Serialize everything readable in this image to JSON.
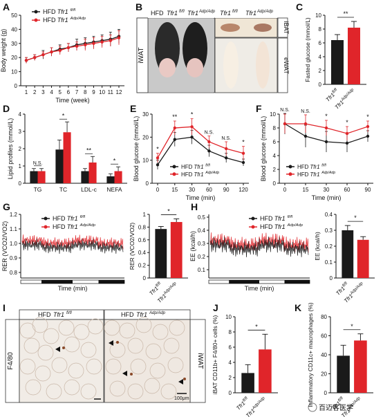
{
  "colors": {
    "hfd_ctrl": "#1a1a1a",
    "hfd_ko": "#e0252a"
  },
  "labels": {
    "ctrl_prefix": "HFD",
    "ctrl_geno": "Tfr1",
    "ctrl_sup": "fl/fl",
    "ko_prefix": "HFD",
    "ko_geno": "Tfr1",
    "ko_sup": "Adp/Adp",
    "photo_iwat": "iWAT",
    "photo_ibat": "iBAT",
    "photo_ewat": "eWAT",
    "photo_hfd": "HFD",
    "scale": "100μm",
    "f480": "F4/80",
    "iwat_side": "iWAT",
    "watermark": "百迈客医学"
  },
  "panels": {
    "A": "A",
    "B": "B",
    "C": "C",
    "D": "D",
    "E": "E",
    "F": "F",
    "G": "G",
    "H": "H",
    "I": "I",
    "J": "J",
    "K": "K"
  },
  "chart_data": [
    {
      "id": "A",
      "type": "line",
      "xlabel": "Time (week)",
      "ylabel": "Body weight (g)",
      "x": [
        1,
        2,
        3,
        4,
        5,
        6,
        7,
        8,
        9,
        10,
        11,
        12
      ],
      "ylim": [
        0,
        50
      ],
      "yticks": [
        0,
        10,
        20,
        30,
        40,
        50
      ],
      "series": [
        {
          "name": "HFD Tfr1 fl/fl",
          "values": [
            18,
            20,
            22,
            24,
            26,
            27,
            29,
            30,
            31,
            32,
            33,
            35
          ],
          "err": [
            2,
            2,
            3,
            3,
            3,
            3,
            4,
            4,
            4,
            4,
            5,
            5
          ]
        },
        {
          "name": "HFD Tfr1 Adp/Adp",
          "values": [
            18,
            20,
            22,
            24,
            25,
            27,
            28,
            29,
            30,
            31,
            32,
            34
          ],
          "err": [
            2,
            2,
            2,
            3,
            3,
            3,
            3,
            4,
            4,
            4,
            4,
            5
          ]
        }
      ]
    },
    {
      "id": "C",
      "type": "bar",
      "ylabel": "Fasted glucose (mmol/L)",
      "ylim": [
        0,
        10
      ],
      "yticks": [
        0,
        2,
        4,
        6,
        8,
        10
      ],
      "categories": [
        "Tfr1 fl/fl",
        "Tfr1 Adp/Adp"
      ],
      "values": [
        6.4,
        8.2
      ],
      "err": [
        0.8,
        0.9
      ],
      "sig": "**"
    },
    {
      "id": "D",
      "type": "bar",
      "ylabel": "Lipid profiles (mmol/L)",
      "ylim": [
        0,
        4
      ],
      "yticks": [
        0,
        1,
        2,
        3,
        4
      ],
      "categories": [
        "TG",
        "TC",
        "LDL-c",
        "NEFA"
      ],
      "series": [
        {
          "name": "HFD Tfr1 fl/fl",
          "values": [
            0.7,
            1.95,
            0.7,
            0.4
          ],
          "err": [
            0.15,
            0.55,
            0.15,
            0.15
          ]
        },
        {
          "name": "HFD Tfr1 Adp/Adp",
          "values": [
            0.7,
            2.95,
            1.2,
            0.7
          ],
          "err": [
            0.15,
            0.6,
            0.35,
            0.25
          ]
        }
      ],
      "sig": [
        "N.S.",
        "*",
        "**",
        "*"
      ]
    },
    {
      "id": "E",
      "type": "line",
      "xlabel": "Time (min)",
      "ylabel": "Blood glucose (mmol/L)",
      "x": [
        0,
        15,
        30,
        60,
        90,
        120
      ],
      "ylim": [
        0,
        30
      ],
      "yticks": [
        0,
        10,
        20,
        30
      ],
      "series": [
        {
          "name": "HFD Tfr1 fl/fl",
          "values": [
            8,
            19,
            20,
            14,
            11,
            9
          ],
          "err": [
            2,
            3,
            3,
            2.5,
            2,
            1.5
          ]
        },
        {
          "name": "HFD Tfr1 Adp/Adp",
          "values": [
            11,
            24,
            24.5,
            18,
            15,
            13
          ],
          "err": [
            2,
            3,
            3.5,
            2.5,
            3,
            3
          ]
        }
      ],
      "sig": [
        "*",
        "**",
        "*",
        "N.S.",
        "N.S.",
        "*"
      ]
    },
    {
      "id": "F",
      "type": "line",
      "xlabel": "Time (min)",
      "ylabel": "Blood glucose (mmol/L)",
      "x": [
        0,
        15,
        30,
        60,
        90
      ],
      "ylim": [
        0,
        10
      ],
      "yticks": [
        0,
        2,
        4,
        6,
        8,
        10
      ],
      "series": [
        {
          "name": "HFD Tfr1 fl/fl",
          "values": [
            8.6,
            6.8,
            6,
            5.8,
            6.8
          ],
          "err": [
            1.5,
            1.6,
            1.5,
            1.3,
            0.8
          ]
        },
        {
          "name": "HFD Tfr1 Adp/Adp",
          "values": [
            8.6,
            8.6,
            8,
            7.2,
            8.2
          ],
          "err": [
            1.4,
            1.3,
            1.1,
            1.0,
            0.8
          ]
        }
      ],
      "sig": [
        "N.S.",
        "N.S.",
        "*",
        "*",
        "*"
      ]
    },
    {
      "id": "G",
      "type": "bar",
      "ylabel": "RER (VCO2/VO2)",
      "ylim": [
        0,
        1.0
      ],
      "yticks": [
        0,
        0.2,
        0.4,
        0.6,
        0.8,
        1.0
      ],
      "categories": [
        "Tfr1 fl/fl",
        "Tfr1 Adp/Adp"
      ],
      "values": [
        0.77,
        0.88
      ],
      "err": [
        0.04,
        0.05
      ],
      "sig": "*",
      "trace_ylabel": "RER (VCO2/VO2)",
      "trace_xlabel": "Time (min)"
    },
    {
      "id": "H",
      "type": "bar",
      "ylabel": "EE (kcal/h)",
      "ylim": [
        0,
        0.4
      ],
      "yticks": [
        0,
        0.1,
        0.2,
        0.3,
        0.4
      ],
      "categories": [
        "Tfr1 fl/fl",
        "Tfr1 Adp/Adp"
      ],
      "values": [
        0.3,
        0.24
      ],
      "err": [
        0.03,
        0.02
      ],
      "sig": "*",
      "trace_ylabel": "EE (kcal/h)",
      "trace_xlabel": "Time (min)"
    },
    {
      "id": "J",
      "type": "bar",
      "ylabel": "iBAT CD11b+ F4/80+ cells (%)",
      "ylim": [
        0,
        10
      ],
      "yticks": [
        0,
        2,
        4,
        6,
        8,
        10
      ],
      "categories": [
        "Tfr1 fl/fl",
        "Tfr1 Adp/Adp"
      ],
      "values": [
        2.6,
        5.7
      ],
      "err": [
        1.1,
        2.0
      ],
      "sig": "*"
    },
    {
      "id": "K",
      "type": "bar",
      "ylabel": "Inflammatory CD11c+ macrophages (%)",
      "ylim": [
        0,
        80
      ],
      "yticks": [
        0,
        20,
        40,
        60,
        80
      ],
      "categories": [
        "Tfr1 fl/fl",
        "Tfr1 Adp/Adp"
      ],
      "values": [
        39,
        55
      ],
      "err": [
        11,
        7
      ],
      "sig": "*"
    }
  ]
}
